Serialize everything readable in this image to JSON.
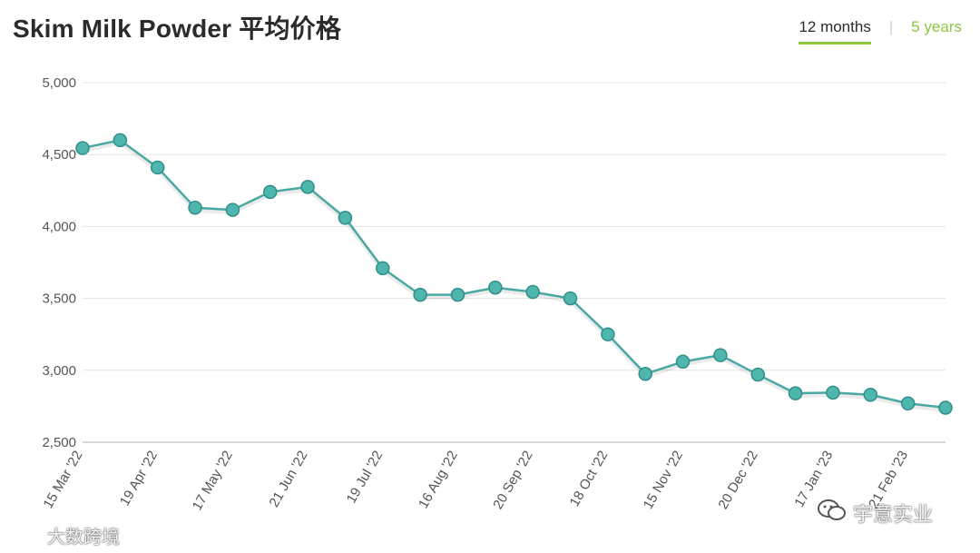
{
  "header": {
    "title": "Skim Milk Powder 平均价格",
    "tabs": [
      {
        "label": "12 months",
        "active": true
      },
      {
        "label": "5 years",
        "active": false
      }
    ],
    "separator": "|"
  },
  "colors": {
    "line": "#4aa8a2",
    "marker_fill": "#4fb6ae",
    "marker_stroke": "#2f8f89",
    "grid": "#e3e3e3",
    "accent": "#8cc63f"
  },
  "watermarks": {
    "left": "大数跨境",
    "right": "宇意实业",
    "right_icon": "wechat-icon"
  },
  "chart_data": {
    "type": "line",
    "title": "Skim Milk Powder 平均价格",
    "xlabel": "",
    "ylabel": "",
    "ylim": [
      2500,
      5000
    ],
    "yticks": [
      2500,
      3000,
      3500,
      4000,
      4500,
      5000
    ],
    "ytick_labels": [
      "2,500",
      "3,000",
      "3,500",
      "4,000",
      "4,500",
      "5,000"
    ],
    "x_tick_labels": [
      "15 Mar '22",
      "19 Apr '22",
      "17 May '22",
      "21 Jun '22",
      "19 Jul '22",
      "16 Aug '22",
      "20 Sep '22",
      "18 Oct '22",
      "15 Nov '22",
      "20 Dec '22",
      "17 Jan '23",
      "21 Feb '23"
    ],
    "x_tick_positions": [
      0,
      2,
      4,
      6,
      8,
      10,
      12,
      14,
      16,
      18,
      20,
      22
    ],
    "grid": true,
    "legend": "none",
    "series": [
      {
        "values": [
          4545,
          4600,
          4410,
          4130,
          4115,
          4240,
          4275,
          4060,
          3710,
          3525,
          3525,
          3575,
          3545,
          3500,
          3250,
          2975,
          3060,
          3105,
          2970,
          2840,
          2845,
          2830,
          2770,
          2740
        ]
      }
    ]
  }
}
